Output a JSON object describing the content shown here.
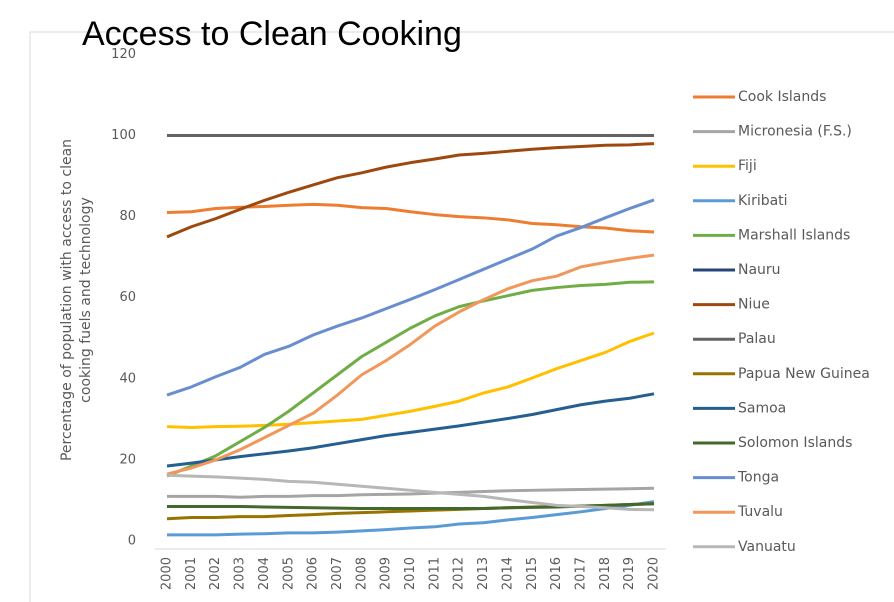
{
  "chart_data": {
    "type": "line",
    "title": "Access to Clean Cooking",
    "y_label": [
      "Percentage of population with access to clean",
      "cooking fuels and technology"
    ],
    "categories": [
      "2000",
      "2001",
      "2002",
      "2003",
      "2004",
      "2005",
      "2006",
      "2007",
      "2008",
      "2009",
      "2010",
      "2011",
      "2012",
      "2013",
      "2014",
      "2015",
      "2016",
      "2017",
      "2018",
      "2019",
      "2020"
    ],
    "ylim": [
      0,
      120
    ],
    "yticks": [
      0,
      20,
      40,
      60,
      80,
      100,
      120
    ],
    "grid": false,
    "legend": "right",
    "series": [
      {
        "name": "Cook Islands",
        "color": "#ed7d31",
        "values": [
          81,
          81.2,
          82,
          82.3,
          82.5,
          82.8,
          83,
          82.8,
          82.2,
          82,
          81.2,
          80.5,
          80,
          79.7,
          79.2,
          78.3,
          78,
          77.5,
          77.2,
          76.5,
          76.2
        ]
      },
      {
        "name": "Micronesia (F.S.)",
        "color": "#a5a5a5",
        "values": [
          11,
          11,
          11,
          10.8,
          11,
          11,
          11.2,
          11.2,
          11.4,
          11.5,
          11.6,
          11.8,
          12,
          12.2,
          12.4,
          12.5,
          12.6,
          12.7,
          12.8,
          12.9,
          13
        ]
      },
      {
        "name": "Fiji",
        "color": "#ffc000",
        "values": [
          28.2,
          28,
          28.2,
          28.3,
          28.5,
          28.8,
          29.2,
          29.6,
          30,
          31,
          32,
          33.2,
          34.5,
          36.5,
          38,
          40.2,
          42.5,
          44.5,
          46.5,
          49.2,
          51.3
        ]
      },
      {
        "name": "Kiribati",
        "color": "#5b9bd5",
        "values": [
          1.5,
          1.5,
          1.5,
          1.7,
          1.8,
          2,
          2,
          2.2,
          2.5,
          2.8,
          3.2,
          3.5,
          4.2,
          4.5,
          5.2,
          5.8,
          6.5,
          7.2,
          8,
          8.8,
          9.7
        ]
      },
      {
        "name": "Marshall Islands",
        "color": "#70ad47",
        "values": [
          16,
          18.5,
          21,
          24.5,
          28,
          32,
          36.5,
          41,
          45.5,
          49,
          52.5,
          55.5,
          57.8,
          59.2,
          60.5,
          61.8,
          62.5,
          63,
          63.3,
          63.8,
          63.9
        ]
      },
      {
        "name": "Nauru",
        "color": "#264478",
        "values": [
          100,
          100,
          100,
          100,
          100,
          100,
          100,
          100,
          100,
          100,
          100,
          100,
          100,
          100,
          100,
          100,
          100,
          100,
          100,
          100,
          100
        ]
      },
      {
        "name": "Niue",
        "color": "#9e480e",
        "values": [
          75,
          77.5,
          79.5,
          81.8,
          84,
          86,
          87.8,
          89.6,
          90.8,
          92.2,
          93.3,
          94.2,
          95.2,
          95.6,
          96.1,
          96.6,
          97,
          97.3,
          97.6,
          97.7,
          98
        ]
      },
      {
        "name": "Palau",
        "color": "#636363",
        "values": [
          100,
          100,
          100,
          100,
          100,
          100,
          100,
          100,
          100,
          100,
          100,
          100,
          100,
          100,
          100,
          100,
          100,
          100,
          100,
          100,
          100
        ]
      },
      {
        "name": "Papua New Guinea",
        "color": "#997300",
        "values": [
          5.5,
          5.8,
          5.8,
          6,
          6,
          6.3,
          6.5,
          6.8,
          7,
          7.2,
          7.4,
          7.6,
          7.8,
          8,
          8.2,
          8.4,
          8.5,
          8.6,
          8.8,
          9,
          9.2
        ]
      },
      {
        "name": "Samoa",
        "color": "#255e91",
        "values": [
          18.5,
          19.2,
          20,
          20.8,
          21.5,
          22.2,
          23,
          24,
          25,
          26,
          26.8,
          27.6,
          28.4,
          29.3,
          30.2,
          31.2,
          32.4,
          33.6,
          34.5,
          35.2,
          36.3
        ]
      },
      {
        "name": "Solomon Islands",
        "color": "#43682b",
        "values": [
          8.5,
          8.5,
          8.5,
          8.5,
          8.4,
          8.3,
          8.2,
          8.1,
          8,
          8,
          8,
          8,
          8,
          8,
          8.2,
          8.3,
          8.4,
          8.6,
          8.8,
          9,
          9.2
        ]
      },
      {
        "name": "Tonga",
        "color": "#698ed0",
        "values": [
          36,
          38,
          40.5,
          42.8,
          46,
          48,
          50.8,
          53,
          55,
          57.3,
          59.6,
          62,
          64.5,
          67,
          69.5,
          72,
          75.2,
          77.3,
          79.7,
          82,
          84.1
        ]
      },
      {
        "name": "Tuvalu",
        "color": "#f1975a",
        "values": [
          16.5,
          18,
          20,
          22.5,
          25.5,
          28.5,
          31.5,
          36,
          41,
          44.5,
          48.5,
          53,
          56.5,
          59.5,
          62.2,
          64.2,
          65.3,
          67.6,
          68.7,
          69.7,
          70.5
        ]
      },
      {
        "name": "Vanuatu",
        "color": "#b7b7b7",
        "values": [
          16.2,
          16,
          15.8,
          15.5,
          15.2,
          14.7,
          14.5,
          14,
          13.5,
          13,
          12.5,
          12,
          11.5,
          11,
          10.2,
          9.5,
          8.8,
          8.5,
          8.2,
          7.8,
          7.7
        ]
      }
    ]
  }
}
